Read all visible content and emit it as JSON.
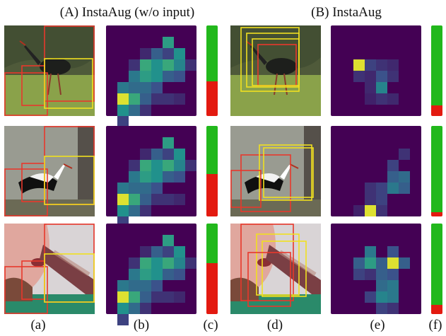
{
  "headings": {
    "a": "(A) InstaAug (w/o input)",
    "b": "(B) InstaAug"
  },
  "column_labels": {
    "a": "(a)",
    "b": "(b)",
    "c": "(c)",
    "d": "(d)",
    "e": "(e)",
    "f": "(f)"
  },
  "colors": {
    "heatmap_base": "#440154",
    "crop_red": "#e8382c",
    "crop_yellow": "#f0e020",
    "bar_green": "#22b81c",
    "bar_red": "#e31a10"
  },
  "image_subjects": [
    "stork-on-grass",
    "stork-in-flight",
    "face-with-bottle"
  ],
  "bar_fractions": {
    "without_input": [
      0.62,
      0.53,
      0.44
    ],
    "with_input": [
      0.88,
      0.95,
      0.9
    ]
  },
  "heatmaps": {
    "without_input": [
      [
        [
          5,
          1,
          0.55
        ],
        [
          4,
          2,
          0.3
        ],
        [
          6,
          2,
          0.5
        ],
        [
          3,
          3,
          0.6
        ],
        [
          4,
          3,
          0.5
        ],
        [
          5,
          3,
          0.6
        ],
        [
          6,
          3,
          0.45
        ],
        [
          2,
          4,
          0.4
        ],
        [
          3,
          4,
          0.55
        ],
        [
          4,
          4,
          0.5
        ],
        [
          5,
          4,
          0.3
        ],
        [
          6,
          4,
          0.25
        ],
        [
          1,
          5,
          0.4
        ],
        [
          2,
          5,
          0.35
        ],
        [
          3,
          5,
          0.35
        ],
        [
          4,
          5,
          0.25
        ],
        [
          1,
          6,
          0.95
        ],
        [
          2,
          6,
          0.6
        ],
        [
          3,
          6,
          0.3
        ],
        [
          1,
          7,
          0.5
        ],
        [
          2,
          7,
          0.35
        ],
        [
          1,
          8,
          0.2
        ],
        [
          5,
          6,
          0.15
        ],
        [
          6,
          6,
          0.12
        ],
        [
          2,
          3,
          0.15
        ],
        [
          7,
          3,
          0.15
        ],
        [
          3,
          7,
          0.15
        ],
        [
          4,
          6,
          0.15
        ],
        [
          3,
          2,
          0.12
        ],
        [
          5,
          2,
          0.2
        ]
      ],
      [
        [
          5,
          1,
          0.55
        ],
        [
          4,
          2,
          0.3
        ],
        [
          6,
          2,
          0.5
        ],
        [
          3,
          3,
          0.6
        ],
        [
          4,
          3,
          0.5
        ],
        [
          5,
          3,
          0.6
        ],
        [
          6,
          3,
          0.45
        ],
        [
          2,
          4,
          0.4
        ],
        [
          3,
          4,
          0.55
        ],
        [
          4,
          4,
          0.5
        ],
        [
          5,
          4,
          0.3
        ],
        [
          6,
          4,
          0.25
        ],
        [
          1,
          5,
          0.4
        ],
        [
          2,
          5,
          0.35
        ],
        [
          3,
          5,
          0.35
        ],
        [
          4,
          5,
          0.25
        ],
        [
          1,
          6,
          0.95
        ],
        [
          2,
          6,
          0.6
        ],
        [
          3,
          6,
          0.3
        ],
        [
          1,
          7,
          0.5
        ],
        [
          2,
          7,
          0.35
        ],
        [
          1,
          8,
          0.2
        ],
        [
          5,
          6,
          0.15
        ],
        [
          6,
          6,
          0.12
        ],
        [
          2,
          3,
          0.15
        ],
        [
          7,
          3,
          0.15
        ],
        [
          3,
          7,
          0.15
        ],
        [
          4,
          6,
          0.15
        ],
        [
          3,
          2,
          0.12
        ],
        [
          5,
          2,
          0.2
        ]
      ],
      [
        [
          5,
          1,
          0.55
        ],
        [
          4,
          2,
          0.3
        ],
        [
          6,
          2,
          0.5
        ],
        [
          3,
          3,
          0.6
        ],
        [
          4,
          3,
          0.5
        ],
        [
          5,
          3,
          0.6
        ],
        [
          6,
          3,
          0.45
        ],
        [
          2,
          4,
          0.4
        ],
        [
          3,
          4,
          0.55
        ],
        [
          4,
          4,
          0.5
        ],
        [
          5,
          4,
          0.3
        ],
        [
          6,
          4,
          0.25
        ],
        [
          1,
          5,
          0.4
        ],
        [
          2,
          5,
          0.35
        ],
        [
          3,
          5,
          0.35
        ],
        [
          4,
          5,
          0.25
        ],
        [
          1,
          6,
          0.95
        ],
        [
          2,
          6,
          0.6
        ],
        [
          3,
          6,
          0.3
        ],
        [
          1,
          7,
          0.5
        ],
        [
          2,
          7,
          0.35
        ],
        [
          1,
          8,
          0.2
        ],
        [
          5,
          6,
          0.15
        ],
        [
          6,
          6,
          0.12
        ],
        [
          2,
          3,
          0.15
        ],
        [
          7,
          3,
          0.15
        ],
        [
          3,
          7,
          0.15
        ],
        [
          4,
          6,
          0.15
        ],
        [
          3,
          2,
          0.12
        ],
        [
          5,
          2,
          0.2
        ]
      ]
    ],
    "with_input": [
      [
        [
          2,
          3,
          0.95
        ],
        [
          3,
          3,
          0.2
        ],
        [
          4,
          3,
          0.15
        ],
        [
          5,
          3,
          0.12
        ],
        [
          2,
          4,
          0.15
        ],
        [
          3,
          4,
          0.12
        ],
        [
          4,
          4,
          0.25
        ],
        [
          5,
          4,
          0.15
        ],
        [
          4,
          5,
          0.45
        ],
        [
          3,
          5,
          0.12
        ],
        [
          4,
          6,
          0.15
        ],
        [
          5,
          6,
          0.12
        ],
        [
          3,
          6,
          0.1
        ]
      ],
      [
        [
          6,
          2,
          0.15
        ],
        [
          5,
          3,
          0.2
        ],
        [
          5,
          4,
          0.3
        ],
        [
          6,
          4,
          0.35
        ],
        [
          5,
          5,
          0.4
        ],
        [
          6,
          5,
          0.3
        ],
        [
          3,
          5,
          0.15
        ],
        [
          4,
          5,
          0.2
        ],
        [
          3,
          6,
          0.15
        ],
        [
          4,
          6,
          0.2
        ],
        [
          3,
          7,
          0.95
        ],
        [
          4,
          7,
          0.15
        ],
        [
          2,
          7,
          0.1
        ]
      ],
      [
        [
          3,
          2,
          0.4
        ],
        [
          5,
          2,
          0.25
        ],
        [
          2,
          3,
          0.3
        ],
        [
          3,
          3,
          0.55
        ],
        [
          4,
          3,
          0.3
        ],
        [
          5,
          3,
          0.95
        ],
        [
          6,
          3,
          0.3
        ],
        [
          2,
          4,
          0.2
        ],
        [
          3,
          4,
          0.15
        ],
        [
          4,
          4,
          0.3
        ],
        [
          5,
          4,
          0.25
        ],
        [
          4,
          5,
          0.35
        ],
        [
          5,
          5,
          0.4
        ],
        [
          4,
          6,
          0.45
        ],
        [
          5,
          6,
          0.4
        ],
        [
          3,
          6,
          0.2
        ],
        [
          4,
          7,
          0.2
        ],
        [
          5,
          7,
          0.15
        ]
      ]
    ]
  }
}
